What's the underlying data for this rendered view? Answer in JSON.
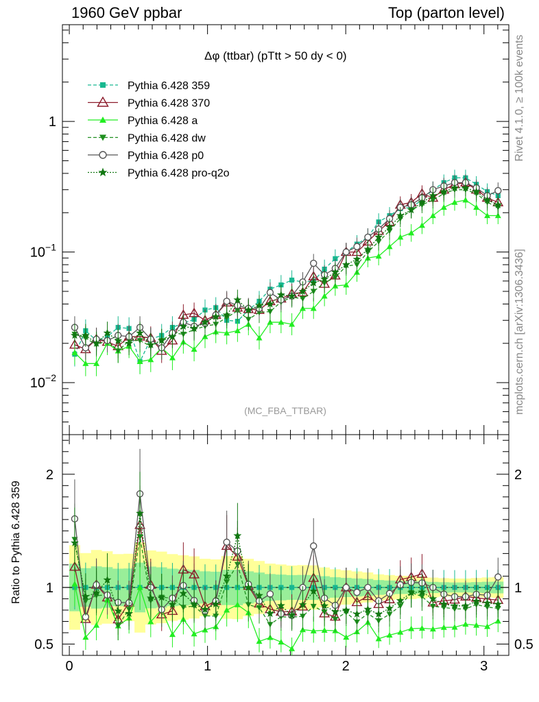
{
  "header": {
    "left": "1960 GeV ppbar",
    "right": "Top (parton level)"
  },
  "side": {
    "top": "Rivet 4.1.0, ≥ 100k events",
    "bottom": "mcplots.cern.ch [arXiv:1306.3436]"
  },
  "chart_data": {
    "type": "line",
    "title": "Δφ (ttbar) (pTtt > 50 dy < 0)",
    "analysis_tag": "(MC_FBA_TTBAR)",
    "xlabel": "",
    "ylabel": "",
    "ratio_ylabel": "Ratio to Pythia 6.428 359",
    "xlim": [
      -0.05,
      3.18
    ],
    "ylim": [
      0.004,
      5.5
    ],
    "yscale": "log",
    "ratio_ylim": [
      0.4,
      2.35
    ],
    "x_ticks": [
      "0",
      "1",
      "2",
      "3"
    ],
    "y_ticks": [
      {
        "value": 1,
        "label": "1"
      },
      {
        "value": 0.1,
        "label": "10^-1"
      },
      {
        "value": 0.01,
        "label": "10^-2"
      }
    ],
    "ratio_ticks": [
      {
        "value": 0.5,
        "label": "0.5"
      },
      {
        "value": 1,
        "label": "1"
      },
      {
        "value": 2,
        "label": "2"
      }
    ],
    "x": [
      0.039,
      0.118,
      0.196,
      0.275,
      0.353,
      0.432,
      0.511,
      0.589,
      0.668,
      0.746,
      0.825,
      0.903,
      0.982,
      1.06,
      1.139,
      1.217,
      1.296,
      1.374,
      1.453,
      1.532,
      1.61,
      1.689,
      1.767,
      1.846,
      1.924,
      2.003,
      2.081,
      2.16,
      2.238,
      2.317,
      2.395,
      2.474,
      2.552,
      2.631,
      2.71,
      2.788,
      2.867,
      2.945,
      3.024,
      3.102
    ],
    "series": [
      {
        "name": "Pythia 6.428 359",
        "color": "#17b890",
        "marker": "square",
        "line": "dashed",
        "values": [
          0.0165,
          0.025,
          0.021,
          0.0225,
          0.0265,
          0.026,
          0.0145,
          0.0215,
          0.023,
          0.0265,
          0.0285,
          0.0305,
          0.036,
          0.0375,
          0.03,
          0.0295,
          0.036,
          0.042,
          0.052,
          0.056,
          0.061,
          0.059,
          0.06,
          0.074,
          0.089,
          0.1,
          0.115,
          0.13,
          0.17,
          0.19,
          0.215,
          0.22,
          0.25,
          0.3,
          0.34,
          0.37,
          0.37,
          0.33,
          0.29,
          0.27
        ]
      },
      {
        "name": "Pythia 6.428 370",
        "color": "#8b1a2a",
        "marker": "open-triangle",
        "line": "solid",
        "values": [
          0.0195,
          0.018,
          0.0215,
          0.0205,
          0.019,
          0.0225,
          0.0225,
          0.022,
          0.0175,
          0.021,
          0.033,
          0.034,
          0.03,
          0.033,
          0.041,
          0.0375,
          0.0365,
          0.036,
          0.042,
          0.044,
          0.048,
          0.049,
          0.065,
          0.057,
          0.066,
          0.1,
          0.1,
          0.12,
          0.145,
          0.17,
          0.23,
          0.24,
          0.28,
          0.26,
          0.3,
          0.33,
          0.34,
          0.3,
          0.26,
          0.24
        ]
      },
      {
        "name": "Pythia 6.428 a",
        "color": "#22ee22",
        "marker": "triangle",
        "line": "solid",
        "values": [
          0.017,
          0.014,
          0.014,
          0.02,
          0.0175,
          0.019,
          0.0145,
          0.015,
          0.0185,
          0.0155,
          0.0205,
          0.018,
          0.0225,
          0.0245,
          0.024,
          0.025,
          0.028,
          0.022,
          0.029,
          0.029,
          0.028,
          0.037,
          0.037,
          0.046,
          0.055,
          0.056,
          0.07,
          0.09,
          0.093,
          0.11,
          0.13,
          0.14,
          0.16,
          0.19,
          0.22,
          0.24,
          0.25,
          0.22,
          0.19,
          0.19
        ]
      },
      {
        "name": "Pythia 6.428 dw",
        "color": "#1e8f1e",
        "marker": "down-triangle",
        "line": "dashed",
        "values": [
          0.0235,
          0.022,
          0.0195,
          0.021,
          0.0175,
          0.021,
          0.021,
          0.019,
          0.021,
          0.024,
          0.0235,
          0.0255,
          0.027,
          0.028,
          0.0315,
          0.0355,
          0.0305,
          0.0345,
          0.035,
          0.0415,
          0.045,
          0.044,
          0.05,
          0.058,
          0.064,
          0.078,
          0.08,
          0.1,
          0.12,
          0.145,
          0.18,
          0.21,
          0.23,
          0.25,
          0.28,
          0.3,
          0.3,
          0.28,
          0.24,
          0.22
        ]
      },
      {
        "name": "Pythia 6.428 p0",
        "color": "#555555",
        "marker": "open-circle",
        "line": "solid",
        "values": [
          0.0265,
          0.0185,
          0.0215,
          0.021,
          0.023,
          0.0225,
          0.0265,
          0.0215,
          0.0185,
          0.024,
          0.029,
          0.027,
          0.0285,
          0.033,
          0.042,
          0.039,
          0.037,
          0.037,
          0.049,
          0.043,
          0.046,
          0.059,
          0.082,
          0.067,
          0.075,
          0.1,
          0.11,
          0.13,
          0.15,
          0.18,
          0.22,
          0.23,
          0.26,
          0.3,
          0.32,
          0.34,
          0.34,
          0.31,
          0.27,
          0.295
        ]
      },
      {
        "name": "Pythia 6.428 pro-q2o",
        "color": "#117711",
        "marker": "star",
        "line": "dotted",
        "values": [
          0.023,
          0.023,
          0.02,
          0.024,
          0.021,
          0.02,
          0.024,
          0.0195,
          0.021,
          0.0225,
          0.027,
          0.026,
          0.029,
          0.032,
          0.033,
          0.043,
          0.036,
          0.039,
          0.04,
          0.047,
          0.046,
          0.05,
          0.058,
          0.062,
          0.07,
          0.08,
          0.088,
          0.105,
          0.13,
          0.155,
          0.19,
          0.21,
          0.24,
          0.27,
          0.29,
          0.31,
          0.31,
          0.29,
          0.25,
          0.23
        ]
      }
    ]
  }
}
